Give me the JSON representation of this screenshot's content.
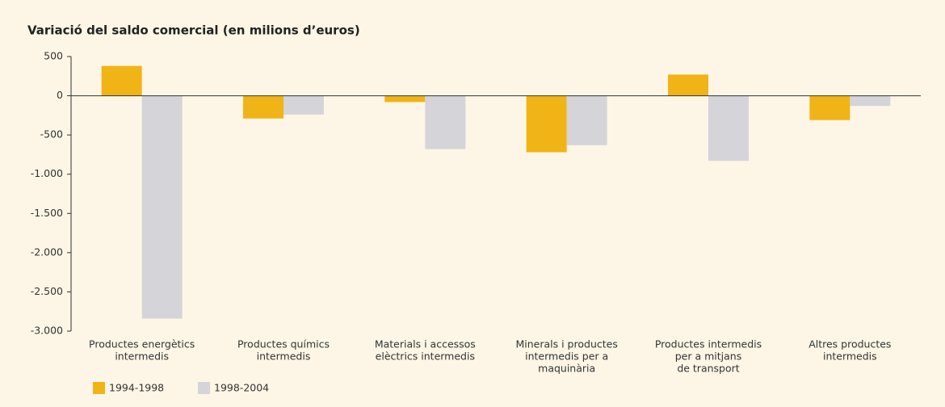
{
  "chart_data": {
    "type": "bar",
    "title": "Variació del saldo comercial (en milions d’euros)",
    "categories": [
      [
        "Productes energètics",
        "intermedis"
      ],
      [
        "Productes químics",
        "intermedis"
      ],
      [
        "Materials i accessos",
        "elèctrics intermedis"
      ],
      [
        "Minerals i productes",
        "intermedis per a",
        "maquinària"
      ],
      [
        "Productes intermedis",
        "per a mitjans",
        "de transport"
      ],
      [
        "Altres productes",
        "intermedis"
      ]
    ],
    "series": [
      {
        "name": "1994-1998",
        "color": "#f0b417",
        "values": [
          380,
          -290,
          -80,
          -720,
          270,
          -310
        ]
      },
      {
        "name": "1998-2004",
        "color": "#d4d4d9",
        "values": [
          -2840,
          -240,
          -680,
          -630,
          -830,
          -130
        ]
      }
    ],
    "ylim": [
      500,
      -3000
    ],
    "yticks": [
      500,
      0,
      -500,
      {
        "value": -1000,
        "label": "-1.000"
      },
      {
        "value": -1500,
        "label": "-1.500"
      },
      {
        "value": -2000,
        "label": "-2.000"
      },
      {
        "value": -2500,
        "label": "-2.500"
      },
      {
        "value": -3000,
        "label": "-3.000"
      }
    ],
    "legend": "bottom-left"
  }
}
